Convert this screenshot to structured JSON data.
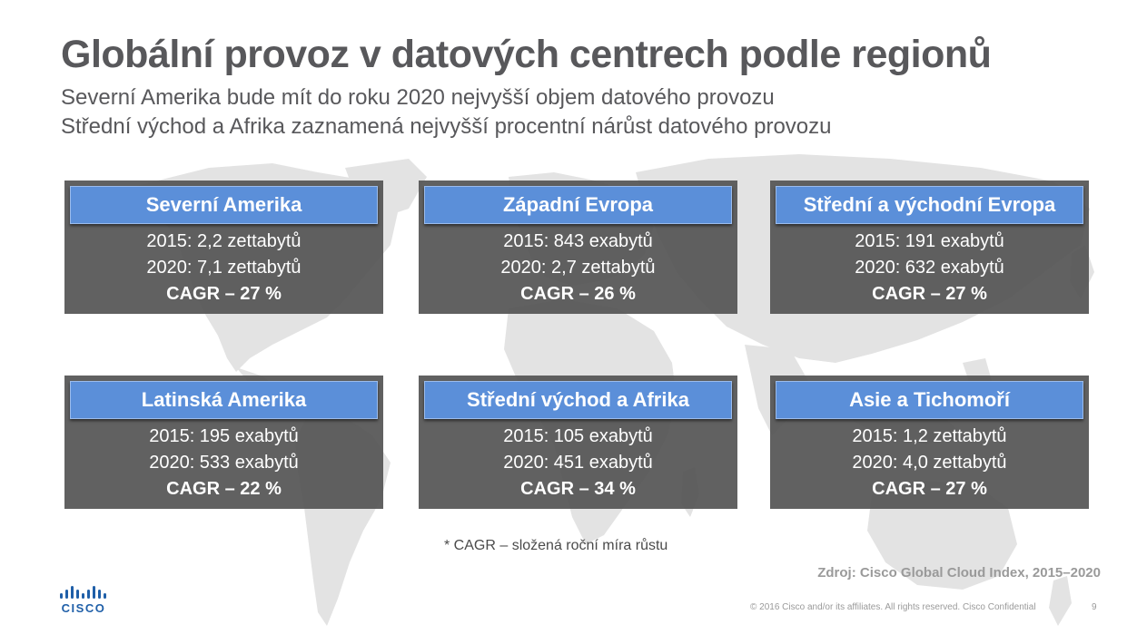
{
  "slide": {
    "title": "Globální provoz v datových centrech podle regionů",
    "subtitle_line1": "Severní Amerika bude mít do roku 2020 nejvyšší objem datového provozu",
    "subtitle_line2": "Střední východ a Afrika zaznamená nejvyšší procentní nárůst datového provozu"
  },
  "regions": [
    {
      "name": "Severní Amerika",
      "line2015": "2015: 2,2 zettabytů",
      "line2020": "2020: 7,1 zettabytů",
      "cagr": "CAGR – 27 %"
    },
    {
      "name": "Západní Evropa",
      "line2015": "2015: 843 exabytů",
      "line2020": "2020: 2,7 zettabytů",
      "cagr": "CAGR – 26 %"
    },
    {
      "name": "Střední a východní Evropa",
      "line2015": "2015: 191 exabytů",
      "line2020": "2020: 632 exabytů",
      "cagr": "CAGR – 27 %"
    },
    {
      "name": "Latinská Amerika",
      "line2015": "2015: 195 exabytů",
      "line2020": "2020: 533 exabytů",
      "cagr": "CAGR – 22 %"
    },
    {
      "name": "Střední východ a Afrika",
      "line2015": "2015: 105 exabytů",
      "line2020": "2020: 451 exabytů",
      "cagr": "CAGR – 34 %"
    },
    {
      "name": "Asie a Tichomoří",
      "line2015": "2015: 1,2 zettabytů",
      "line2020": "2020: 4,0 zettabytů",
      "cagr": "CAGR – 27 %"
    }
  ],
  "footnote": "* CAGR – složená roční míra růstu",
  "source": "Zdroj: Cisco Global Cloud Index, 2015–2020",
  "footer": {
    "copyright": "© 2016 Cisco and/or its affiliates. All rights reserved. Cisco Confidential",
    "page_number": "9",
    "logo_text": "CISCO"
  },
  "colors": {
    "card_background": "#545454",
    "card_header": "#5b8fd9",
    "title_text": "#58585b",
    "map": "#e3e3e3",
    "logo": "#1f5fa8"
  },
  "icons": {
    "logo": "cisco-logo-icon",
    "background": "world-map-icon"
  }
}
